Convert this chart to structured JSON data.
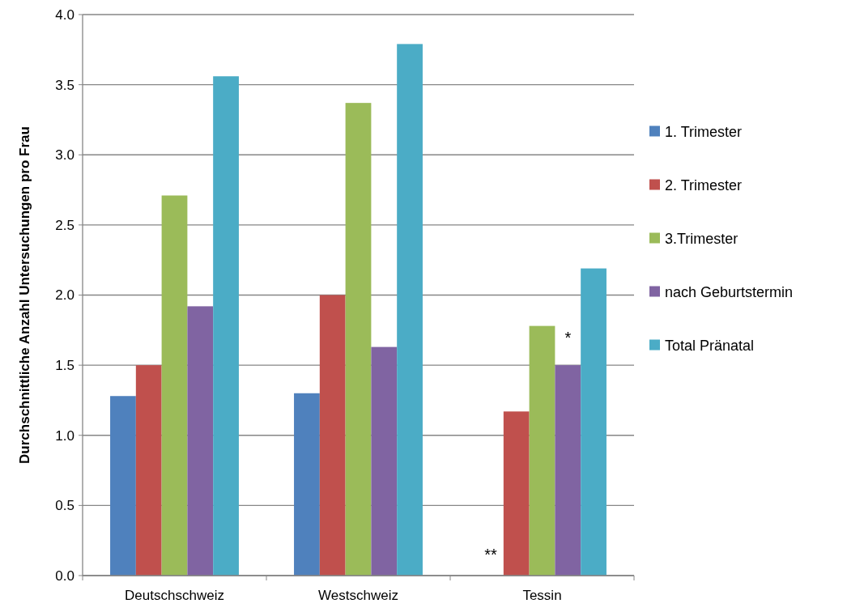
{
  "chart_data": {
    "type": "bar",
    "ylabel": "Durchschnittliche Anzahl Untersuchungen pro Frau",
    "categories": [
      "Deutschschweiz",
      "Westschweiz",
      "Tessin"
    ],
    "series": [
      {
        "name": "1. Trimester",
        "color": "#4f81bd",
        "values": [
          1.28,
          1.3,
          null
        ]
      },
      {
        "name": "2. Trimester",
        "color": "#c0504d",
        "values": [
          1.5,
          2.0,
          1.17
        ]
      },
      {
        "name": "3.Trimester",
        "color": "#9bbb59",
        "values": [
          2.71,
          3.37,
          1.78
        ]
      },
      {
        "name": "nach Geburtstermin",
        "color": "#8064a2",
        "values": [
          1.92,
          1.63,
          1.5
        ]
      },
      {
        "name": "Total Pränatal",
        "color": "#4bacc6",
        "values": [
          3.56,
          3.79,
          2.19
        ]
      }
    ],
    "ylim": [
      0,
      4
    ],
    "yticks": [
      {
        "value": 0,
        "label": "0.0"
      },
      {
        "value": 0.5,
        "label": "0.5"
      },
      {
        "value": 1,
        "label": "1.0"
      },
      {
        "value": 1.5,
        "label": "1.5"
      },
      {
        "value": 2,
        "label": "2.0"
      },
      {
        "value": 2.5,
        "label": "2.5"
      },
      {
        "value": 3,
        "label": "3.0"
      },
      {
        "value": 3.5,
        "label": "3.5"
      },
      {
        "value": 4,
        "label": "4.0"
      }
    ],
    "grid": "y",
    "legend": "right",
    "annotations": [
      "**",
      "*"
    ]
  }
}
